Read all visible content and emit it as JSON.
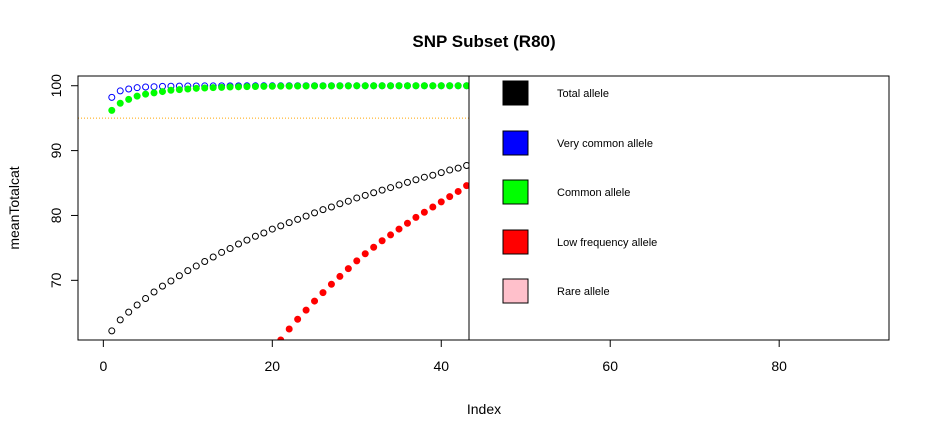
{
  "chart_data": {
    "type": "scatter",
    "title": "SNP Subset (R80)",
    "xlabel": "Index",
    "ylabel": "meanTotalcat",
    "xlim": [
      -3,
      93
    ],
    "ylim": [
      60.8,
      101.5
    ],
    "x_ticks": [
      0,
      20,
      40,
      60,
      80
    ],
    "y_ticks": [
      70,
      80,
      90,
      100
    ],
    "grid": false,
    "reference_line": {
      "y": 95,
      "color": "#FFA500",
      "style": "dotted"
    },
    "legend_position": "top-right",
    "legend": [
      {
        "label": "Total allele",
        "color": "#000000"
      },
      {
        "label": "Very common allele",
        "color": "#0000FF"
      },
      {
        "label": "Common allele",
        "color": "#00FF00"
      },
      {
        "label": "Low frequency allele",
        "color": "#FF0000"
      },
      {
        "label": "Rare allele",
        "color": "#FFC0CB"
      }
    ],
    "series": [
      {
        "color": "#000000",
        "marker": "open-circle",
        "x": [
          1,
          2,
          3,
          4,
          5,
          6,
          7,
          8,
          9,
          10,
          11,
          12,
          13,
          14,
          15,
          16,
          17,
          18,
          19,
          20,
          21,
          22,
          23,
          24,
          25,
          26,
          27,
          28,
          29,
          30,
          31,
          32,
          33,
          34,
          35,
          36,
          37,
          38,
          39,
          40,
          41,
          42,
          43,
          44
        ],
        "values": [
          62.2,
          63.9,
          65.1,
          66.2,
          67.2,
          68.2,
          69.1,
          69.9,
          70.7,
          71.5,
          72.2,
          72.9,
          73.6,
          74.3,
          74.9,
          75.6,
          76.2,
          76.8,
          77.3,
          77.9,
          78.4,
          78.9,
          79.4,
          79.9,
          80.4,
          80.9,
          81.3,
          81.8,
          82.2,
          82.7,
          83.1,
          83.5,
          83.9,
          84.3,
          84.7,
          85.1,
          85.5,
          85.9,
          86.2,
          86.6,
          87.0,
          87.3,
          87.7,
          88.5
        ]
      },
      {
        "color": "#0000FF",
        "marker": "open-circle",
        "x": [
          1,
          2,
          3,
          4,
          5,
          6,
          7,
          8,
          9,
          10,
          11,
          12,
          13,
          14,
          15,
          16,
          17,
          18,
          19,
          20,
          21,
          22,
          23,
          24,
          25,
          26,
          27,
          28,
          29,
          30,
          31,
          32,
          33,
          34,
          35,
          36,
          37,
          38,
          39,
          40,
          41,
          42,
          43,
          44
        ],
        "values": [
          98.2,
          99.2,
          99.5,
          99.7,
          99.8,
          99.85,
          99.9,
          99.92,
          99.94,
          99.95,
          99.96,
          99.97,
          99.97,
          99.98,
          99.98,
          99.98,
          99.99,
          99.99,
          99.99,
          99.99,
          99.99,
          100,
          100,
          100,
          100,
          100,
          100,
          100,
          100,
          100,
          100,
          100,
          100,
          100,
          100,
          100,
          100,
          100,
          100,
          100,
          100,
          100,
          100,
          100
        ]
      },
      {
        "color": "#00FF00",
        "marker": "filled-circle",
        "x": [
          1,
          2,
          3,
          4,
          5,
          6,
          7,
          8,
          9,
          10,
          11,
          12,
          13,
          14,
          15,
          16,
          17,
          18,
          19,
          20,
          21,
          22,
          23,
          24,
          25,
          26,
          27,
          28,
          29,
          30,
          31,
          32,
          33,
          34,
          35,
          36,
          37,
          38,
          39,
          40,
          41,
          42,
          43,
          44
        ],
        "values": [
          96.2,
          97.3,
          97.9,
          98.4,
          98.7,
          98.9,
          99.1,
          99.3,
          99.4,
          99.5,
          99.6,
          99.65,
          99.7,
          99.75,
          99.8,
          99.83,
          99.86,
          99.88,
          99.9,
          99.92,
          99.93,
          99.94,
          99.95,
          99.96,
          99.97,
          99.97,
          99.98,
          99.98,
          99.98,
          99.99,
          99.99,
          99.99,
          99.99,
          99.99,
          100,
          100,
          100,
          100,
          100,
          100,
          100,
          100,
          100,
          100
        ]
      },
      {
        "color": "#FF0000",
        "marker": "filled-circle",
        "x": [
          21,
          22,
          23,
          24,
          25,
          26,
          27,
          28,
          29,
          30,
          31,
          32,
          33,
          34,
          35,
          36,
          37,
          38,
          39,
          40,
          41,
          42,
          43,
          44
        ],
        "values": [
          60.8,
          62.5,
          64.0,
          65.4,
          66.8,
          68.1,
          69.4,
          70.6,
          71.8,
          73.0,
          74.1,
          75.1,
          76.1,
          77.0,
          77.9,
          78.8,
          79.7,
          80.5,
          81.3,
          82.1,
          82.9,
          83.7,
          84.6,
          85.5
        ]
      }
    ]
  }
}
